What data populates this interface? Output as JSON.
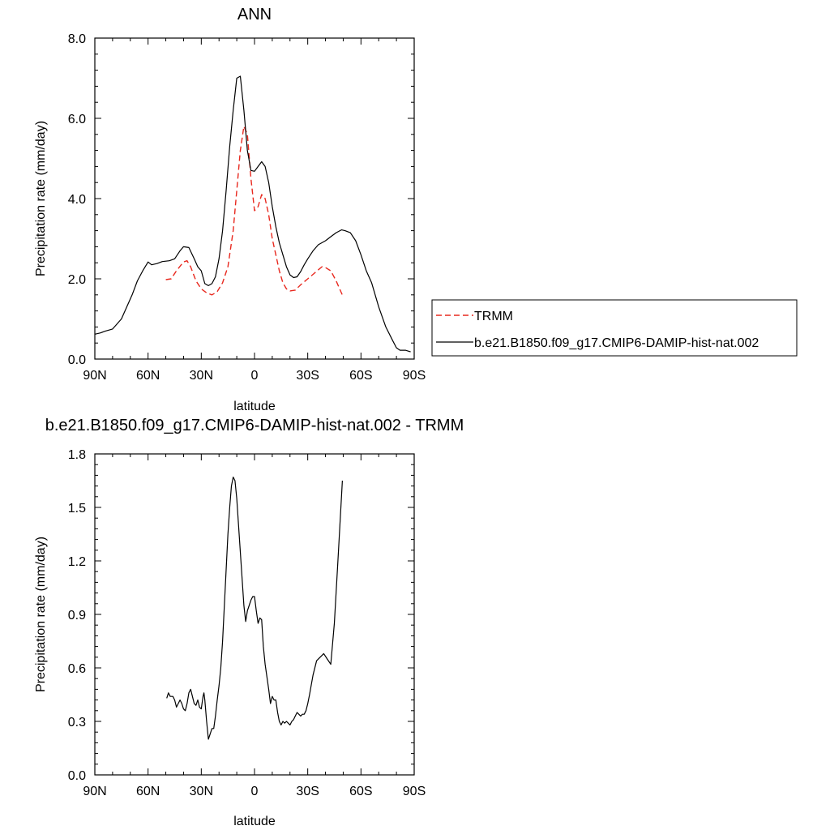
{
  "chart_data": [
    {
      "type": "line",
      "title": "ANN",
      "xlabel": "latitude",
      "ylabel": "Precipitation rate (mm/day)",
      "xlim": [
        90,
        -90
      ],
      "ylim": [
        0,
        8
      ],
      "x_tick_values": [
        90,
        60,
        30,
        0,
        -30,
        -60,
        -90
      ],
      "x_tick_labels": [
        "90N",
        "60N",
        "30N",
        "0",
        "30S",
        "60S",
        "90S"
      ],
      "y_tick_values": [
        0,
        2,
        4,
        6,
        8
      ],
      "y_tick_labels": [
        "0.0",
        "2.0",
        "4.0",
        "6.0",
        "8.0"
      ],
      "legend_position": "right",
      "series": [
        {
          "name": "TRMM",
          "color": "#e8281e",
          "dash": true,
          "x": [
            50,
            47,
            44,
            40,
            38,
            36,
            33,
            30,
            27,
            24,
            21,
            18,
            15,
            12,
            10,
            8,
            6,
            4,
            2,
            0,
            -2,
            -4,
            -6,
            -8,
            -10,
            -12,
            -14,
            -16,
            -18,
            -20,
            -23,
            -26,
            -30,
            -34,
            -38,
            -40,
            -43,
            -46,
            -50
          ],
          "y": [
            1.98,
            2.0,
            2.2,
            2.42,
            2.45,
            2.3,
            1.95,
            1.75,
            1.65,
            1.6,
            1.68,
            1.9,
            2.3,
            3.2,
            4.2,
            5.2,
            5.8,
            5.6,
            4.5,
            3.7,
            3.8,
            4.1,
            4.0,
            3.6,
            3.0,
            2.6,
            2.2,
            1.9,
            1.75,
            1.7,
            1.72,
            1.85,
            2.0,
            2.15,
            2.3,
            2.28,
            2.2,
            1.95,
            1.55
          ]
        },
        {
          "name": "b.e21.B1850.f09_g17.CMIP6-DAMIP-hist-nat.002",
          "color": "#000000",
          "dash": false,
          "x": [
            90,
            87,
            84,
            80,
            78,
            75,
            72,
            69,
            66,
            63,
            60,
            58,
            55,
            52,
            48,
            45,
            42,
            40,
            37,
            34,
            32,
            30,
            28,
            26,
            24,
            22,
            20,
            18,
            16,
            14,
            12,
            10,
            8,
            6,
            4,
            2,
            0,
            -2,
            -4,
            -6,
            -8,
            -10,
            -12,
            -14,
            -16,
            -18,
            -20,
            -22,
            -24,
            -26,
            -28,
            -30,
            -33,
            -36,
            -40,
            -43,
            -46,
            -49,
            -51,
            -54,
            -57,
            -60,
            -63,
            -66,
            -70,
            -74,
            -78,
            -80,
            -82,
            -85,
            -88
          ],
          "y": [
            0.62,
            0.65,
            0.7,
            0.75,
            0.85,
            1.0,
            1.3,
            1.6,
            1.95,
            2.2,
            2.42,
            2.35,
            2.38,
            2.43,
            2.45,
            2.5,
            2.7,
            2.8,
            2.78,
            2.5,
            2.3,
            2.2,
            1.88,
            1.83,
            1.88,
            2.05,
            2.5,
            3.2,
            4.2,
            5.3,
            6.2,
            7.0,
            7.05,
            6.2,
            5.2,
            4.7,
            4.68,
            4.8,
            4.92,
            4.8,
            4.4,
            3.8,
            3.3,
            2.9,
            2.6,
            2.3,
            2.1,
            2.03,
            2.05,
            2.18,
            2.35,
            2.5,
            2.7,
            2.85,
            2.95,
            3.05,
            3.15,
            3.22,
            3.2,
            3.15,
            2.95,
            2.6,
            2.2,
            1.9,
            1.3,
            0.8,
            0.45,
            0.28,
            0.22,
            0.22,
            0.18
          ]
        }
      ]
    },
    {
      "type": "line",
      "title": "b.e21.B1850.f09_g17.CMIP6-DAMIP-hist-nat.002 - TRMM",
      "xlabel": "latitude",
      "ylabel": "Precipitation rate (mm/day)",
      "xlim": [
        90,
        -90
      ],
      "ylim": [
        0,
        1.8
      ],
      "x_tick_values": [
        90,
        60,
        30,
        0,
        -30,
        -60,
        -90
      ],
      "x_tick_labels": [
        "90N",
        "60N",
        "30N",
        "0",
        "30S",
        "60S",
        "90S"
      ],
      "y_tick_values": [
        0,
        0.3,
        0.6,
        0.9,
        1.2,
        1.5,
        1.8
      ],
      "y_tick_labels": [
        "0.0",
        "0.3",
        "0.6",
        "0.9",
        "1.2",
        "1.5",
        "1.8"
      ],
      "series": [
        {
          "color": "#000000",
          "dash": false,
          "x": [
            49.5,
            48.5,
            47.5,
            46,
            45,
            44,
            43,
            42,
            41,
            40,
            39,
            38,
            37,
            36,
            35,
            34,
            33,
            32,
            31,
            30,
            29,
            28.5,
            28,
            27,
            26,
            25,
            24,
            23,
            22,
            21,
            20,
            19,
            18,
            17,
            16,
            15,
            14,
            13,
            12,
            11,
            10,
            9,
            8,
            7,
            6,
            5,
            4,
            3,
            2,
            1,
            0,
            -1,
            -2,
            -3,
            -4,
            -5,
            -6,
            -7,
            -8,
            -9,
            -10,
            -11,
            -12,
            -13,
            -14,
            -15,
            -16,
            -17,
            -18,
            -19,
            -20,
            -21,
            -22,
            -23,
            -24,
            -25,
            -26,
            -27,
            -28,
            -29,
            -30,
            -31,
            -33,
            -35,
            -37,
            -39,
            -41,
            -43,
            -45,
            -47,
            -49.5
          ],
          "y": [
            0.43,
            0.46,
            0.44,
            0.44,
            0.42,
            0.38,
            0.4,
            0.42,
            0.4,
            0.37,
            0.36,
            0.4,
            0.46,
            0.48,
            0.44,
            0.4,
            0.39,
            0.42,
            0.38,
            0.37,
            0.44,
            0.46,
            0.42,
            0.3,
            0.2,
            0.23,
            0.26,
            0.26,
            0.33,
            0.42,
            0.5,
            0.6,
            0.75,
            0.95,
            1.15,
            1.35,
            1.5,
            1.62,
            1.67,
            1.65,
            1.55,
            1.4,
            1.25,
            1.1,
            0.95,
            0.86,
            0.92,
            0.95,
            0.98,
            1.0,
            1.0,
            0.92,
            0.85,
            0.88,
            0.87,
            0.72,
            0.62,
            0.55,
            0.48,
            0.4,
            0.44,
            0.42,
            0.42,
            0.35,
            0.3,
            0.28,
            0.3,
            0.29,
            0.3,
            0.29,
            0.28,
            0.3,
            0.31,
            0.33,
            0.35,
            0.34,
            0.33,
            0.34,
            0.34,
            0.36,
            0.4,
            0.45,
            0.56,
            0.64,
            0.66,
            0.68,
            0.65,
            0.62,
            0.85,
            1.2,
            1.65
          ]
        }
      ]
    }
  ]
}
